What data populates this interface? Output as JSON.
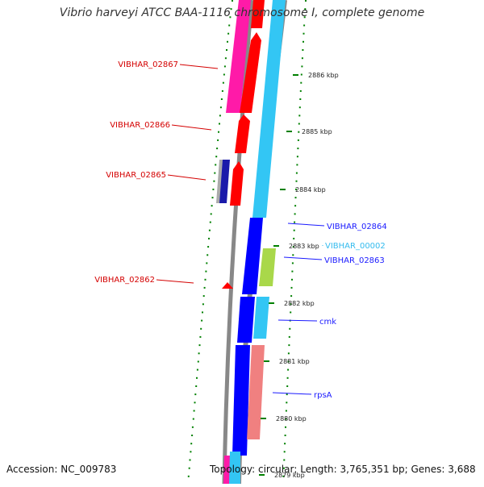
{
  "title": "Vibrio harveyi ATCC BAA-1116 chromosome I, complete genome",
  "footer": {
    "accession": "Accession: NC_009783",
    "summary": "Topology: circular; Length: 3,765,351 bp; Genes: 3,688"
  },
  "colors": {
    "red_gene": "#ff0000",
    "pink_gene": "#ff1aa8",
    "blue_gene": "#0000ff",
    "cyan_gene": "#33c6f4",
    "salmon_gene": "#f08080",
    "tick_green": "#008000",
    "backbone": "#888888"
  },
  "ticks": [
    {
      "label": "2886 kbp"
    },
    {
      "label": "2885 kbp"
    },
    {
      "label": "2884 kbp"
    },
    {
      "label": "2883 kbp"
    },
    {
      "label": "2882 kbp"
    },
    {
      "label": "2881 kbp"
    },
    {
      "label": "2880 kbp"
    },
    {
      "label": "2879 kbp"
    }
  ],
  "left_labels": [
    {
      "text": "VIBHAR_02867"
    },
    {
      "text": "VIBHAR_02866"
    },
    {
      "text": "VIBHAR_02865"
    },
    {
      "text": "VIBHAR_02862"
    }
  ],
  "right_labels": [
    {
      "text": "VIBHAR_02864",
      "tone": "blue"
    },
    {
      "text": "VIBHAR_00002",
      "tone": "cyan"
    },
    {
      "text": "VIBHAR_02863",
      "tone": "blue"
    },
    {
      "text": "cmk",
      "tone": "blue"
    },
    {
      "text": "rpsA",
      "tone": "blue"
    }
  ]
}
